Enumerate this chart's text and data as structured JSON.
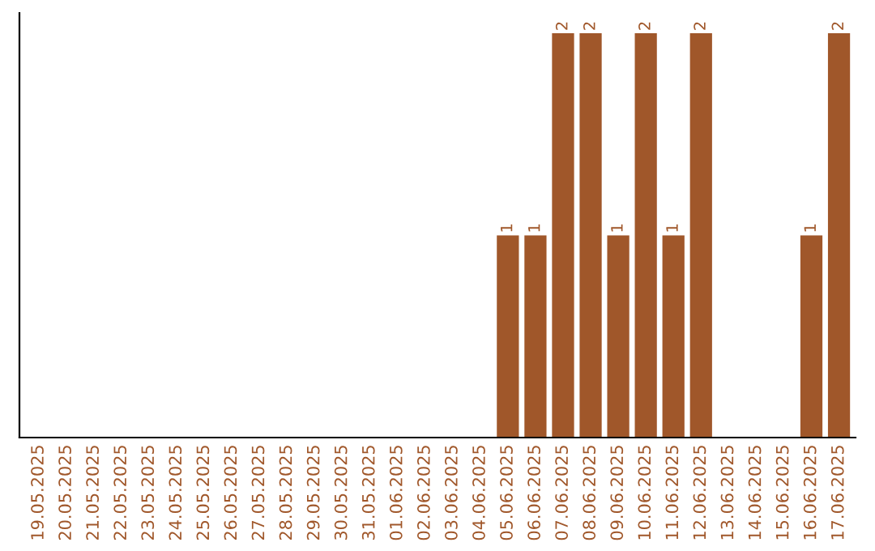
{
  "chart_data": {
    "type": "bar",
    "categories": [
      "19.05.2025",
      "20.05.2025",
      "21.05.2025",
      "22.05.2025",
      "23.05.2025",
      "24.05.2025",
      "25.05.2025",
      "26.05.2025",
      "27.05.2025",
      "28.05.2025",
      "29.05.2025",
      "30.05.2025",
      "31.05.2025",
      "01.06.2025",
      "02.06.2025",
      "03.06.2025",
      "04.06.2025",
      "05.06.2025",
      "06.06.2025",
      "07.06.2025",
      "08.06.2025",
      "09.06.2025",
      "10.06.2025",
      "11.06.2025",
      "12.06.2025",
      "13.06.2025",
      "14.06.2025",
      "15.06.2025",
      "16.06.2025",
      "17.06.2025"
    ],
    "values": [
      null,
      null,
      null,
      null,
      null,
      null,
      null,
      null,
      null,
      null,
      null,
      null,
      null,
      null,
      null,
      null,
      null,
      1,
      1,
      2,
      2,
      1,
      2,
      1,
      2,
      null,
      null,
      null,
      1,
      2
    ],
    "data_labels": true,
    "color": "#a0572a",
    "ylim": [
      0,
      2.1
    ],
    "tick_labels": "x",
    "grid": false,
    "legend": false
  }
}
